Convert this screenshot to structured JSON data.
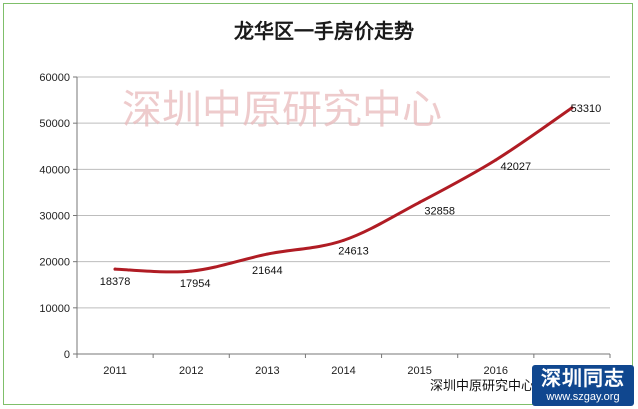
{
  "chart_data": {
    "type": "line",
    "title": "龙华区一手房价走势",
    "categories": [
      "2011",
      "2012",
      "2013",
      "2014",
      "2015",
      "2016",
      ""
    ],
    "series": [
      {
        "values": [
          18378,
          17954,
          21644,
          24613,
          32858,
          42027,
          53310
        ],
        "labels": [
          "18378",
          "17954",
          "21644",
          "24613",
          "32858",
          "42027",
          "53310"
        ]
      }
    ],
    "ylim": [
      0,
      60000
    ],
    "yticks": [
      "0",
      "10000",
      "20000",
      "30000",
      "40000",
      "50000",
      "60000"
    ],
    "grid": true,
    "legend": "none",
    "line_color": "#b01c24",
    "grid_color": "#bdbdbd"
  },
  "watermark": "深圳中原研究中心",
  "source_note": "深圳中原研究中心",
  "badge": {
    "top": "深圳同志",
    "bottom": "www.szgay.org",
    "color": "#10478f"
  }
}
